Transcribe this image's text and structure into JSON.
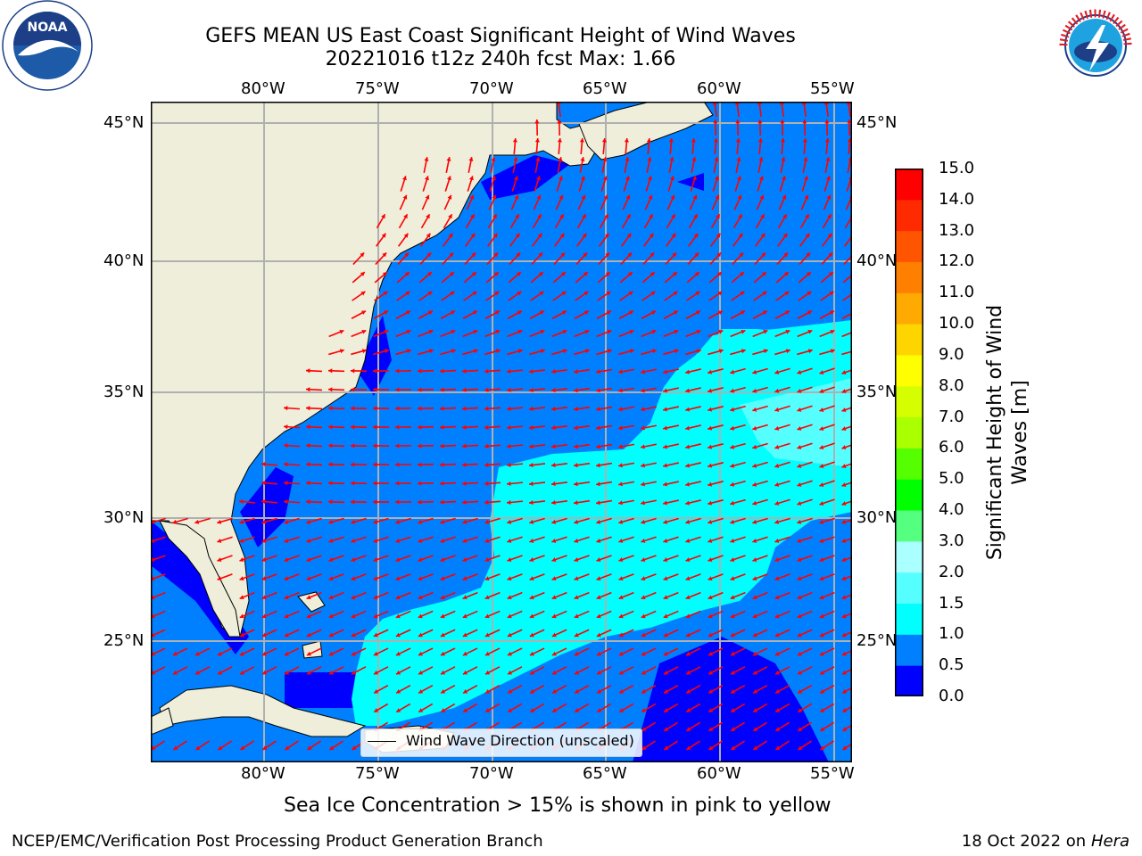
{
  "header": {
    "title_line1": "GEFS MEAN US East Coast Significant Height of Wind Waves",
    "title_line2": "20221016 t12z 240h fcst   Max: 1.66"
  },
  "logos": {
    "left": {
      "name": "noaa-logo",
      "text": "NOAA",
      "ring_text": "NATIONAL OCEANIC AND ATMOSPHERIC ADMINISTRATION · U.S. DEPARTMENT OF COMMERCE"
    },
    "right": {
      "name": "nws-logo",
      "ring_text": "NATIONAL WEATHER SERVICE"
    }
  },
  "map": {
    "lon_range": [
      -85,
      -54.2
    ],
    "lat_range": [
      20.3,
      45.9
    ],
    "lon_ticks": [
      {
        "value": -80,
        "label": "80°W"
      },
      {
        "value": -75,
        "label": "75°W"
      },
      {
        "value": -70,
        "label": "70°W"
      },
      {
        "value": -65,
        "label": "65°W"
      },
      {
        "value": -60,
        "label": "60°W"
      },
      {
        "value": -55,
        "label": "55°W"
      }
    ],
    "lat_ticks": [
      {
        "value": 45,
        "label": "45°N"
      },
      {
        "value": 40,
        "label": "40°N"
      },
      {
        "value": 35,
        "label": "35°N"
      },
      {
        "value": 30,
        "label": "30°N"
      },
      {
        "value": 25,
        "label": "25°N"
      }
    ],
    "legend_label": "Wind Wave Direction (unscaled)",
    "arrow_color": "#ff0000",
    "land_color": "#eeeedb",
    "grid": true
  },
  "colorbar": {
    "label_line1": "Significant Height of Wind",
    "label_line2": "Waves [m]",
    "ticks": [
      "0.0",
      "0.5",
      "1.0",
      "1.5",
      "2.0",
      "3.0",
      "4.0",
      "5.0",
      "6.0",
      "7.0",
      "8.0",
      "9.0",
      "10.0",
      "11.0",
      "12.0",
      "13.0",
      "14.0",
      "15.0"
    ],
    "colors": [
      "#0000ff",
      "#0080ff",
      "#00ffff",
      "#55ffff",
      "#aaffff",
      "#55ff80",
      "#00ff00",
      "#55ff00",
      "#aaff00",
      "#d5ff00",
      "#ffff00",
      "#ffd500",
      "#ffaa00",
      "#ff8000",
      "#ff5500",
      "#ff2a00",
      "#ff0000"
    ]
  },
  "footer": {
    "subtitle": "Sea Ice Concentration > 15% is shown in pink to yellow",
    "left": "NCEP/EMC/Verification Post Processing Product Generation Branch",
    "right_prefix": "18 Oct 2022 on ",
    "right_host": "Hera"
  }
}
